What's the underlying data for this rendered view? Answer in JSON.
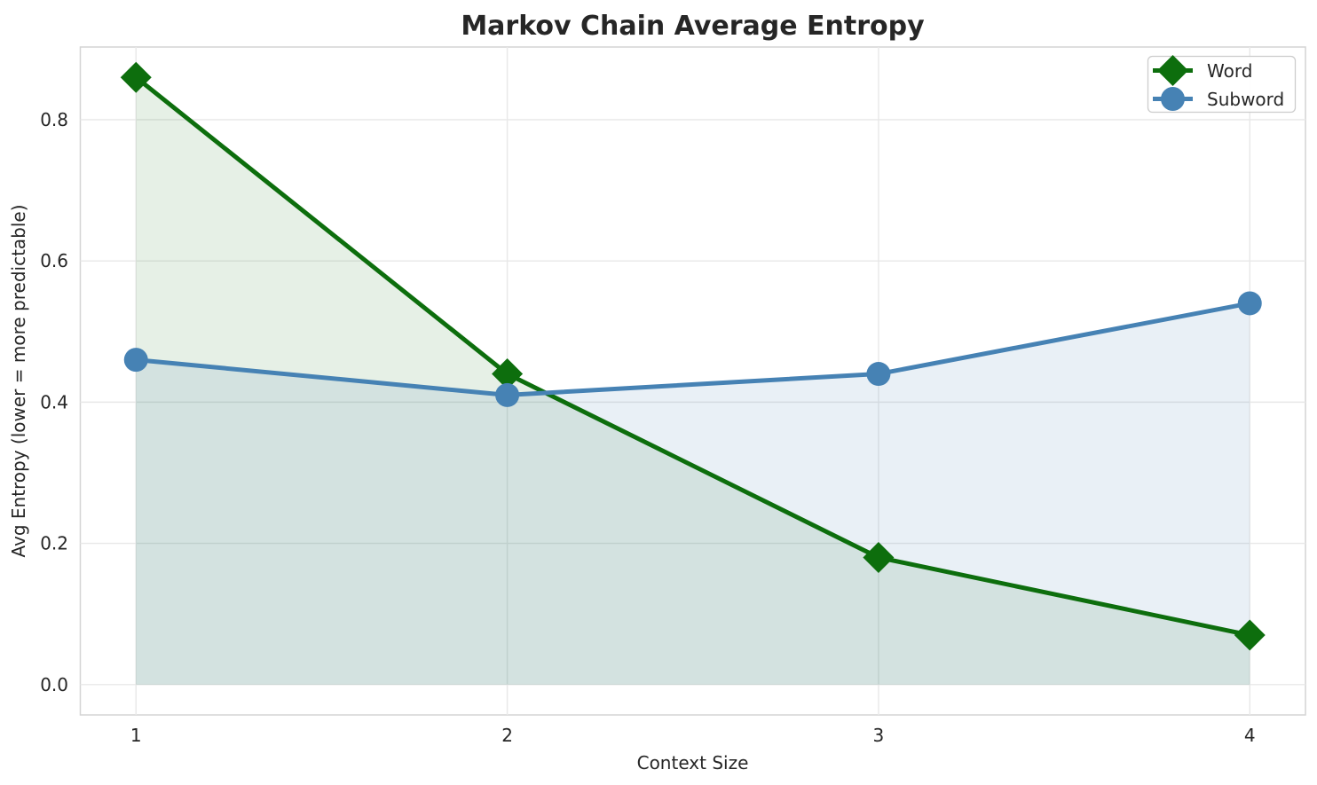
{
  "chart_data": {
    "type": "line",
    "title": "Markov Chain Average Entropy",
    "xlabel": "Context Size",
    "ylabel": "Avg Entropy (lower = more predictable)",
    "x": [
      1,
      2,
      3,
      4
    ],
    "series": [
      {
        "name": "Word",
        "values": [
          0.86,
          0.44,
          0.18,
          0.07
        ],
        "color": "#0d6e0d",
        "fill_color": "#0d6e0d",
        "fill_opacity": 0.1,
        "marker": "diamond",
        "line_width": 5
      },
      {
        "name": "Subword",
        "values": [
          0.46,
          0.41,
          0.44,
          0.54
        ],
        "color": "#4682b4",
        "fill_color": "#4682b4",
        "fill_opacity": 0.12,
        "marker": "circle",
        "line_width": 5
      }
    ],
    "fill_to_zero": true,
    "xticks": [
      1,
      2,
      3,
      4
    ],
    "xtick_labels": [
      "1",
      "2",
      "3",
      "4"
    ],
    "yticks": [
      0.0,
      0.2,
      0.4,
      0.6,
      0.8
    ],
    "ytick_labels": [
      "0.0",
      "0.2",
      "0.4",
      "0.6",
      "0.8"
    ],
    "xlim": [
      0.85,
      4.15
    ],
    "ylim": [
      -0.043,
      0.903
    ],
    "grid": true,
    "legend_position": "upper right",
    "legend_entries": [
      "Word",
      "Subword"
    ]
  },
  "style": {
    "grid_color": "#e8e8e8",
    "spine_color": "#d4d4d4",
    "text_color": "#262626",
    "plot_background": "#ffffff",
    "legend_border_color": "#cccccc",
    "legend_background": "#ffffff"
  }
}
